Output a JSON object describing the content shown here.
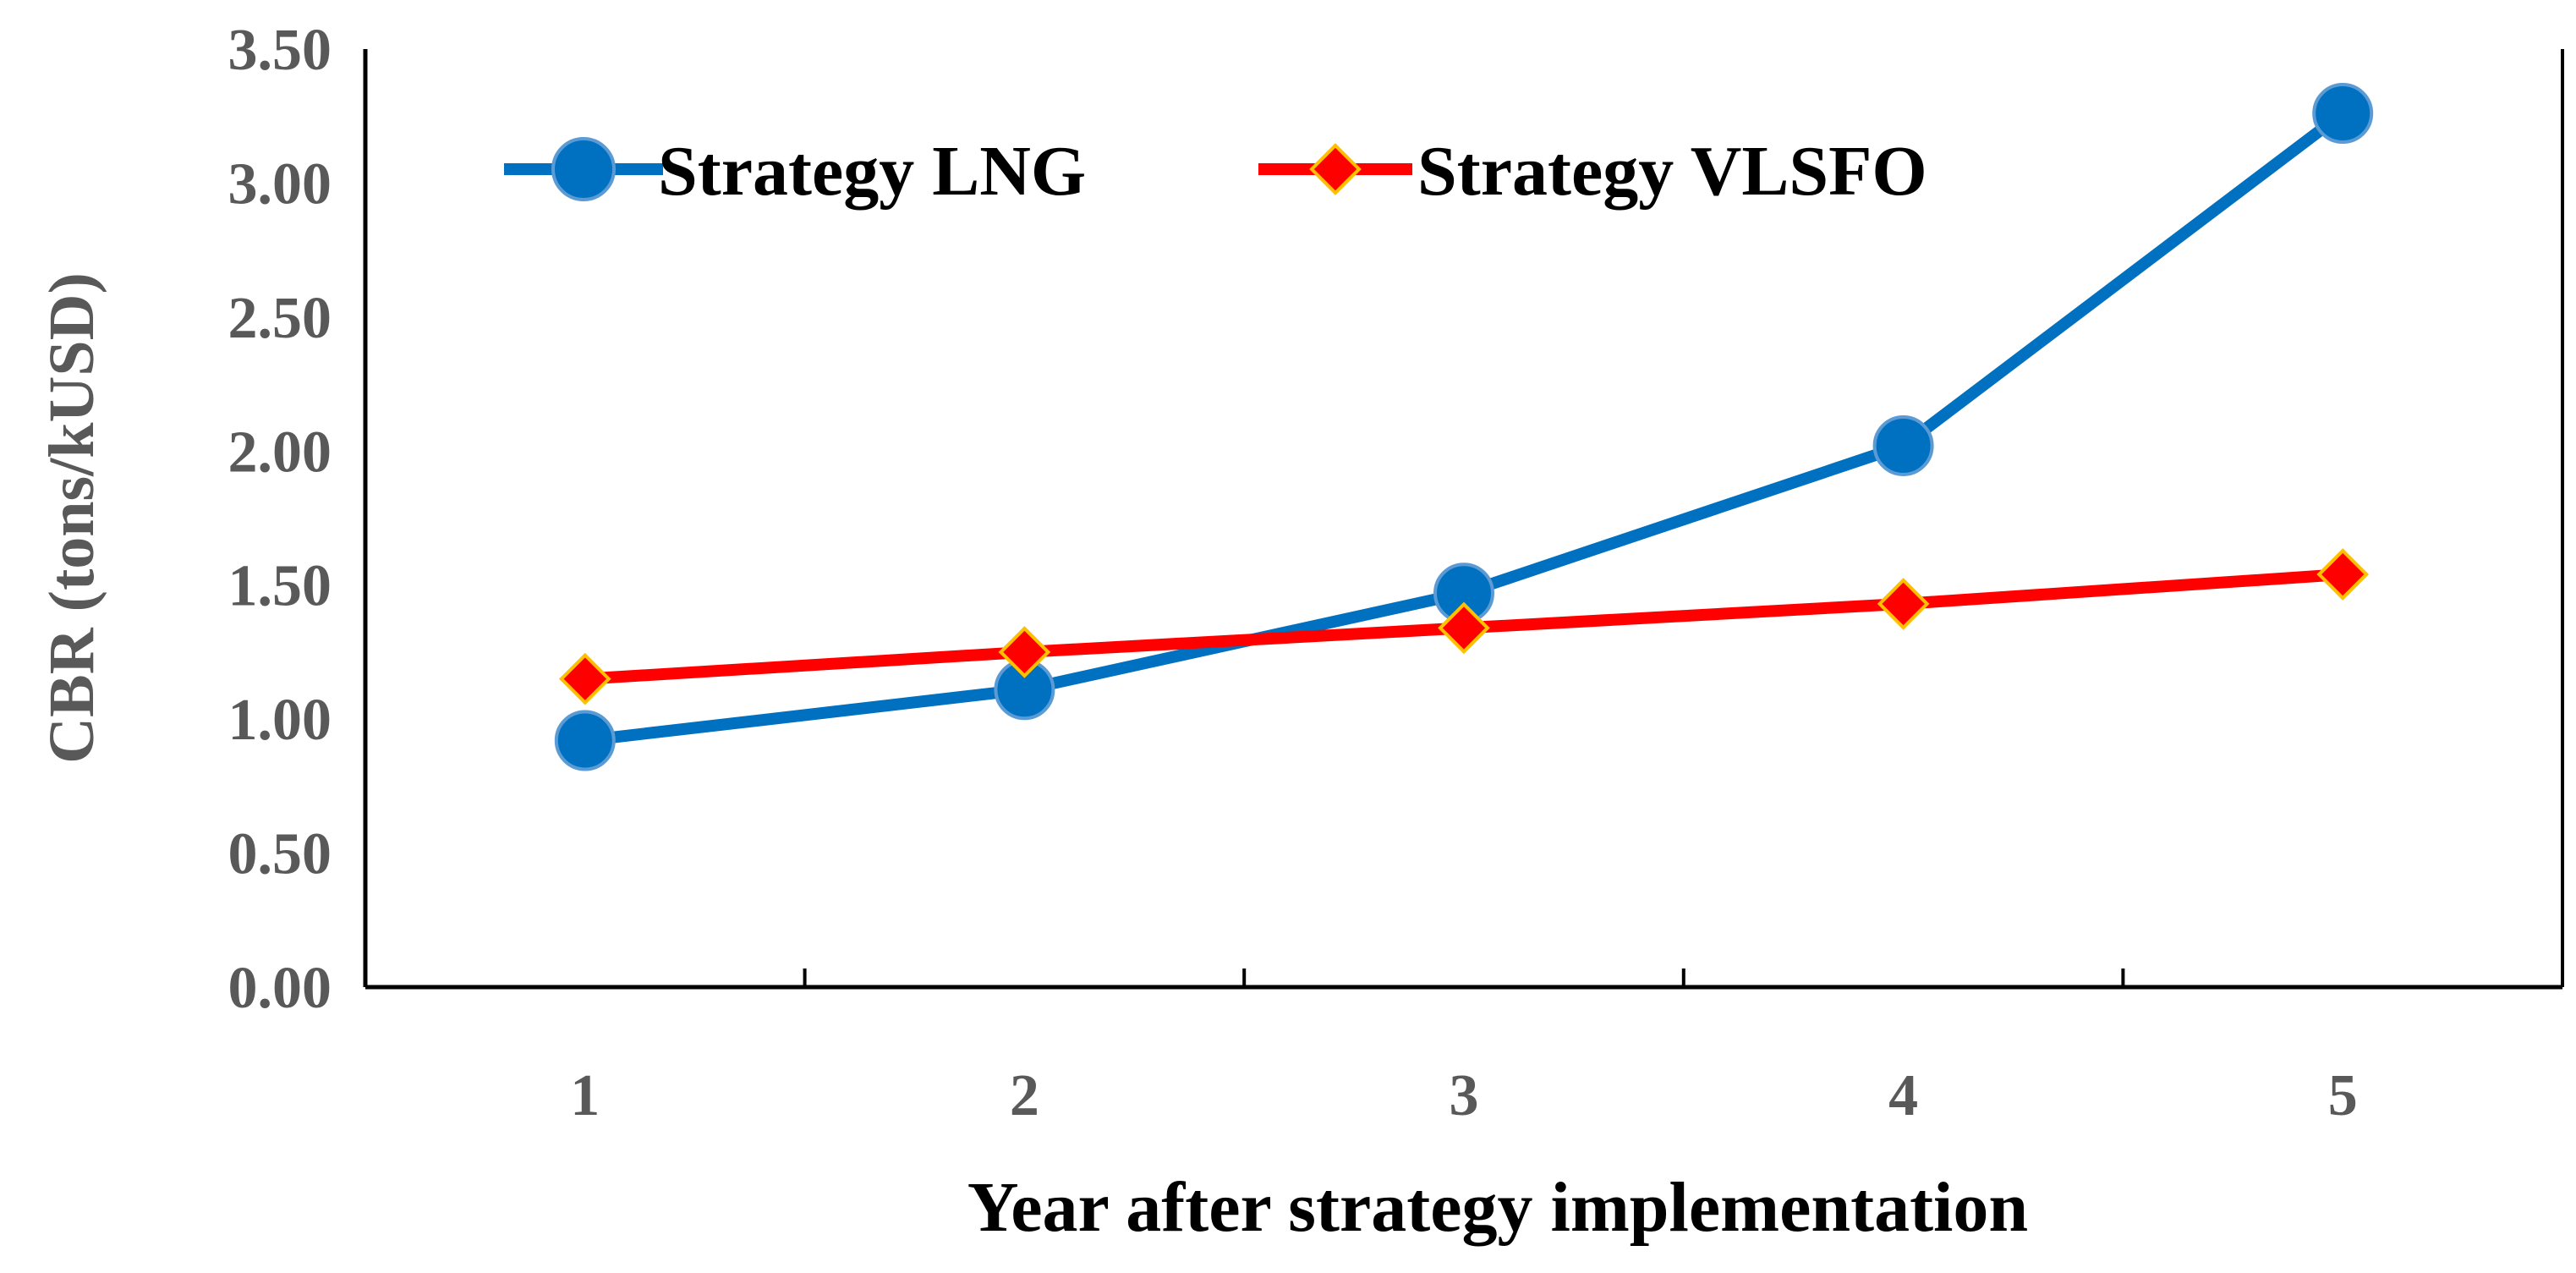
{
  "chart_data": {
    "type": "line",
    "title": "",
    "xlabel": "Year after strategy implementation",
    "ylabel": "CBR (tons/kUSD)",
    "categories": [
      "1",
      "2",
      "3",
      "4",
      "5"
    ],
    "ylim": [
      0,
      3.5
    ],
    "yticks": [
      "0.00",
      "0.50",
      "1.00",
      "1.50",
      "2.00",
      "2.50",
      "3.00",
      "3.50"
    ],
    "grid": false,
    "legend_position": "top-left",
    "series": [
      {
        "name": "Strategy LNG",
        "values": [
          0.92,
          1.11,
          1.47,
          2.02,
          3.26
        ],
        "color": "#0070C0",
        "marker": "circle"
      },
      {
        "name": "Strategy VLSFO",
        "values": [
          1.15,
          1.25,
          1.34,
          1.43,
          1.54
        ],
        "color": "#FF0000",
        "marker": "diamond"
      }
    ]
  }
}
